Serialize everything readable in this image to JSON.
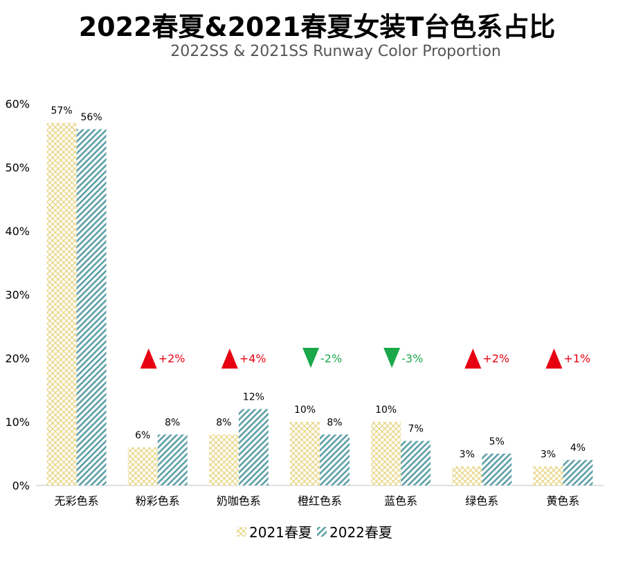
{
  "header": {
    "title": "2022春夏&2021春夏女装T台色系占比",
    "subtitle": "2022SS & 2021SS Runway Color  Proportion"
  },
  "colors": {
    "series_2021": "#e6d27a",
    "series_2022": "#5b9ea6",
    "increase": "#e60012",
    "decrease": "#1aa84a"
  },
  "chart_data": {
    "type": "bar",
    "title": "2022春夏&2021春夏女装T台色系占比",
    "subtitle": "2022SS & 2021SS Runway Color  Proportion",
    "categories": [
      "无彩色系",
      "粉彩色系",
      "奶咖色系",
      "橙红色系",
      "蓝色系",
      "绿色系",
      "黄色系"
    ],
    "series": [
      {
        "name": "2021春夏",
        "values": [
          57,
          6,
          8,
          10,
          10,
          3,
          3
        ],
        "labels": [
          "57%",
          "6%",
          "8%",
          "10%",
          "10%",
          "3%",
          "3%"
        ]
      },
      {
        "name": "2022春夏",
        "values": [
          56,
          8,
          12,
          8,
          7,
          5,
          4
        ],
        "labels": [
          "56%",
          "8%",
          "12%",
          "8%",
          "7%",
          "5%",
          "4%"
        ]
      }
    ],
    "changes": [
      null,
      {
        "dir": "up",
        "label": "+2%"
      },
      {
        "dir": "up",
        "label": "+4%"
      },
      {
        "dir": "down",
        "label": "-2%"
      },
      {
        "dir": "down",
        "label": "-3%"
      },
      {
        "dir": "up",
        "label": "+2%"
      },
      {
        "dir": "up",
        "label": "+1%"
      }
    ],
    "change_level": 20,
    "yticks": [
      "0%",
      "10%",
      "20%",
      "30%",
      "40%",
      "50%",
      "60%"
    ],
    "ylim": [
      0,
      60
    ],
    "xlabel": "",
    "ylabel": "",
    "grid": false,
    "legend_position": "bottom"
  }
}
